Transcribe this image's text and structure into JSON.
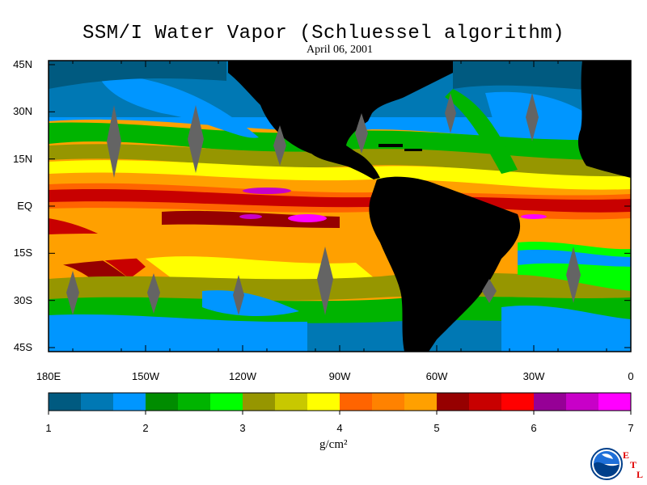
{
  "title": "SSM/I Water Vapor (Schluessel algorithm)",
  "subtitle": "April 06, 2001",
  "lat_labels": [
    "45N",
    "30N",
    "15N",
    "EQ",
    "15S",
    "30S",
    "45S"
  ],
  "lon_labels": [
    "180E",
    "150W",
    "120W",
    "90W",
    "60W",
    "30W",
    "0"
  ],
  "colorbar": {
    "ticks": [
      "1",
      "2",
      "3",
      "4",
      "5",
      "6",
      "7"
    ],
    "units": "g/cm²",
    "colors": [
      "#005a80",
      "#0078b4",
      "#0096ff",
      "#008c00",
      "#00b400",
      "#00ff00",
      "#969600",
      "#c8c800",
      "#ffff00",
      "#ff6400",
      "#ff8200",
      "#ffa000",
      "#960000",
      "#c80000",
      "#ff0000",
      "#960096",
      "#c800c8",
      "#ff00ff"
    ]
  },
  "logo": {
    "org": "NOAA",
    "lab_letters": [
      "E",
      "T",
      "L"
    ]
  }
}
